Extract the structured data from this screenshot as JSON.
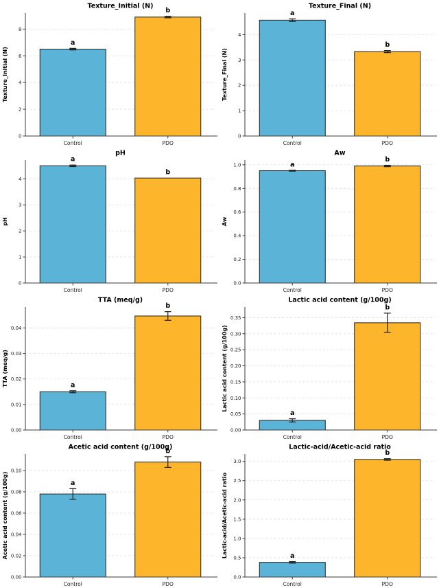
{
  "figure": {
    "background": "#ffffff",
    "bar_colors": [
      "#5bb4d8",
      "#fdb52b"
    ],
    "bar_edge_color": "#1f1f1f",
    "error_bar_color": "#1f1f1f",
    "grid_color": "#dedede",
    "spine_color": "#3a3a3a",
    "tick_label_color": "#1a1a1a",
    "text_color": "#000000",
    "categories": [
      "Control",
      "PDO"
    ]
  },
  "chart_data": [
    {
      "type": "bar",
      "title": "Texture_Initial (N)",
      "ylabel": "Texture_Initial (N)",
      "categories": [
        "Control",
        "PDO"
      ],
      "values": [
        6.5,
        8.9
      ],
      "errors": [
        0.06,
        0.06
      ],
      "sig_letters": [
        "a",
        "b"
      ],
      "ytick_values": [
        0,
        2,
        4,
        6,
        8
      ],
      "ytick_labels": [
        "0",
        "2",
        "4",
        "6",
        "8"
      ],
      "ylim": [
        0,
        9.2
      ],
      "grid": true,
      "legend": "none"
    },
    {
      "type": "bar",
      "title": "Texture_Final (N)",
      "ylabel": "Texture_Final (N)",
      "categories": [
        "Control",
        "PDO"
      ],
      "values": [
        4.57,
        3.33
      ],
      "errors": [
        0.05,
        0.04
      ],
      "sig_letters": [
        "a",
        "b"
      ],
      "ytick_values": [
        0,
        1,
        2,
        3,
        4
      ],
      "ytick_labels": [
        "0",
        "1",
        "2",
        "3",
        "4"
      ],
      "ylim": [
        0,
        4.85
      ],
      "grid": true,
      "legend": "none"
    },
    {
      "type": "bar",
      "title": "pH",
      "ylabel": "pH",
      "categories": [
        "Control",
        "PDO"
      ],
      "values": [
        4.5,
        4.03
      ],
      "errors": [
        0.03,
        0
      ],
      "sig_letters": [
        "a",
        "b"
      ],
      "ytick_values": [
        0,
        1,
        2,
        3,
        4
      ],
      "ytick_labels": [
        "0",
        "1",
        "2",
        "3",
        "4"
      ],
      "ylim": [
        0,
        4.72
      ],
      "grid": true,
      "legend": "none"
    },
    {
      "type": "bar",
      "title": "Aw",
      "ylabel": "Aw",
      "categories": [
        "Control",
        "PDO"
      ],
      "values": [
        0.95,
        0.99
      ],
      "errors": [
        0.004,
        0.006
      ],
      "sig_letters": [
        "a",
        "b"
      ],
      "ytick_values": [
        0,
        0.2,
        0.4,
        0.6,
        0.8,
        1.0
      ],
      "ytick_labels": [
        "0.0",
        "0.2",
        "0.4",
        "0.6",
        "0.8",
        "1.0"
      ],
      "ylim": [
        0,
        1.04
      ],
      "grid": true,
      "legend": "none"
    },
    {
      "type": "bar",
      "title": "TTA (meq/g)",
      "ylabel": "TTA (meq/g)",
      "categories": [
        "Control",
        "PDO"
      ],
      "values": [
        0.015,
        0.0447
      ],
      "errors": [
        0.0004,
        0.0017
      ],
      "sig_letters": [
        "a",
        "b"
      ],
      "ytick_values": [
        0,
        0.01,
        0.02,
        0.03,
        0.04
      ],
      "ytick_labels": [
        "0.00",
        "0.01",
        "0.02",
        "0.03",
        "0.04"
      ],
      "ylim": [
        0,
        0.0482
      ],
      "grid": true,
      "legend": "none"
    },
    {
      "type": "bar",
      "title": "Lactic acid content (g/100g)",
      "ylabel": "Lactic acid content (g/100g)",
      "categories": [
        "Control",
        "PDO"
      ],
      "values": [
        0.03,
        0.334
      ],
      "errors": [
        0.005,
        0.03
      ],
      "sig_letters": [
        "a",
        "b"
      ],
      "ytick_values": [
        0,
        0.05,
        0.1,
        0.15,
        0.2,
        0.25,
        0.3,
        0.35
      ],
      "ytick_labels": [
        "0.00",
        "0.05",
        "0.10",
        "0.15",
        "0.20",
        "0.25",
        "0.30",
        "0.35"
      ],
      "ylim": [
        0,
        0.383
      ],
      "grid": true,
      "legend": "none"
    },
    {
      "type": "bar",
      "title": "Acetic acid content (g/100g)",
      "ylabel": "Acetic acid content (g/100g)",
      "categories": [
        "Control",
        "PDO"
      ],
      "values": [
        0.078,
        0.108
      ],
      "errors": [
        0.005,
        0.005
      ],
      "sig_letters": [
        "a",
        "b"
      ],
      "ytick_values": [
        0,
        0.02,
        0.04,
        0.06,
        0.08,
        0.1
      ],
      "ytick_labels": [
        "0.00",
        "0.02",
        "0.04",
        "0.06",
        "0.08",
        "0.10"
      ],
      "ylim": [
        0,
        0.1155
      ],
      "grid": true,
      "legend": "none"
    },
    {
      "type": "bar",
      "title": "Lactic-acid/Acetic-acid ratio",
      "ylabel": "Lactic-acid/Acetic-acid ratio",
      "categories": [
        "Control",
        "PDO"
      ],
      "values": [
        0.38,
        3.05
      ],
      "errors": [
        0.02,
        0.02
      ],
      "sig_letters": [
        "a",
        "b"
      ],
      "ytick_values": [
        0,
        0.5,
        1.0,
        1.5,
        2.0,
        2.5,
        3.0
      ],
      "ytick_labels": [
        "0.0",
        "0.5",
        "1.0",
        "1.5",
        "2.0",
        "2.5",
        "3.0"
      ],
      "ylim": [
        0,
        3.19
      ],
      "grid": true,
      "legend": "none"
    }
  ]
}
